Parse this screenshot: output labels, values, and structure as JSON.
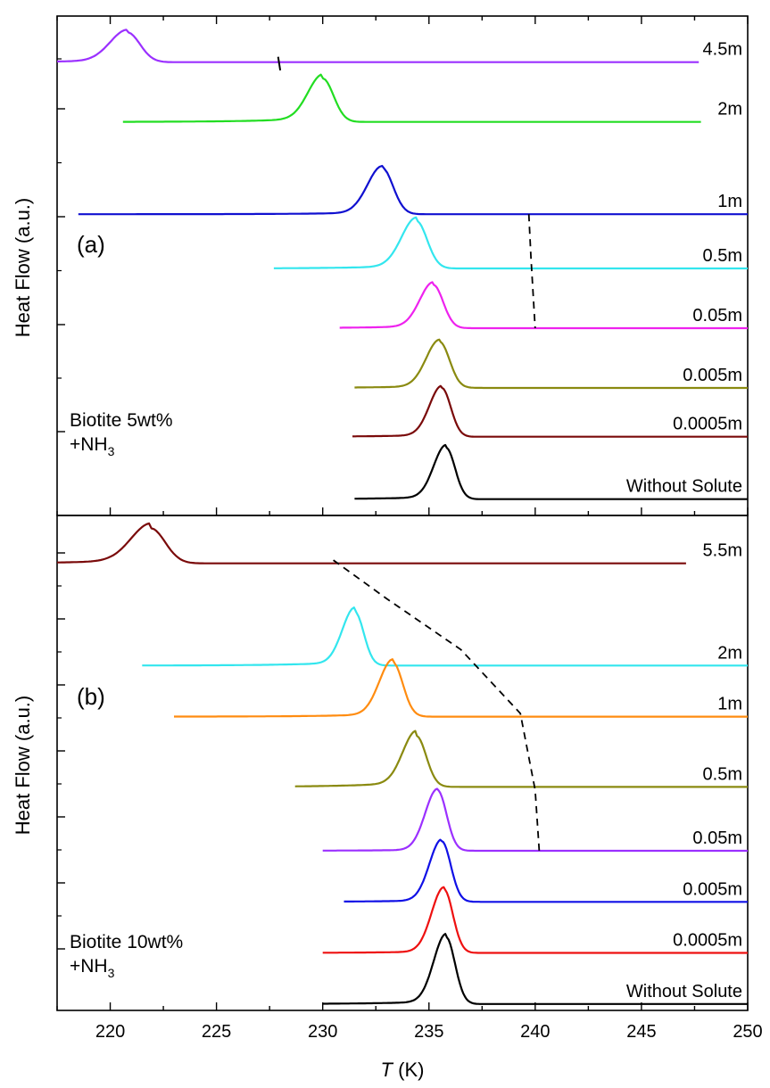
{
  "chart_data": {
    "type": "line",
    "xlabel": {
      "var": "T",
      "unit": " (K)"
    },
    "xlim": [
      217.5,
      250
    ],
    "xticks": [
      220,
      225,
      230,
      235,
      240,
      245,
      250
    ],
    "panels": [
      {
        "tag": "(a)",
        "ylabel": "Heat Flow (a.u.)",
        "sample": [
          "Biotite 5wt%",
          "+NH",
          "3"
        ],
        "series": [
          {
            "name": "4.5m",
            "color": "#9b30ff",
            "x_start": 217.5,
            "x_end": 247.7,
            "baseline": 8.35,
            "peak_x": 220.8,
            "peak_h": 0.55,
            "sigma": 0.7,
            "tail": 0.05
          },
          {
            "name": "2m",
            "color": "#22dd22",
            "x_start": 220.6,
            "x_end": 247.8,
            "baseline": 7.25,
            "peak_x": 230.0,
            "peak_h": 0.8,
            "sigma": 0.6,
            "tail": 0.08
          },
          {
            "name": "1m",
            "color": "#1010d0",
            "x_start": 218.5,
            "x_end": 250,
            "baseline": 5.55,
            "peak_x": 232.8,
            "peak_h": 0.85,
            "sigma": 0.6,
            "tail": 0.04
          },
          {
            "name": "0.5m",
            "color": "#33e6ee",
            "x_start": 227.7,
            "x_end": 250,
            "baseline": 4.55,
            "peak_x": 234.4,
            "peak_h": 0.88,
            "sigma": 0.6,
            "tail": 0.06
          },
          {
            "name": "0.05m",
            "color": "#ee22ee",
            "x_start": 230.8,
            "x_end": 250,
            "baseline": 3.45,
            "peak_x": 235.2,
            "peak_h": 0.8,
            "sigma": 0.55,
            "tail": 0.05
          },
          {
            "name": "0.005m",
            "color": "#8a8a10",
            "x_start": 231.5,
            "x_end": 250,
            "baseline": 2.35,
            "peak_x": 235.5,
            "peak_h": 0.85,
            "sigma": 0.55,
            "tail": 0.04
          },
          {
            "name": "0.0005m",
            "color": "#7a0a0a",
            "x_start": 231.4,
            "x_end": 250,
            "baseline": 1.45,
            "peak_x": 235.6,
            "peak_h": 0.9,
            "sigma": 0.5,
            "tail": 0.04
          },
          {
            "name": "Without Solute",
            "color": "#000000",
            "x_start": 231.5,
            "x_end": 250,
            "baseline": 0.3,
            "peak_x": 235.8,
            "peak_h": 0.95,
            "sigma": 0.5,
            "tail": 0.05
          }
        ],
        "guide": [
          [
            239.7,
            5.55
          ],
          [
            239.8,
            4.75
          ],
          [
            240.0,
            3.45
          ]
        ],
        "marker": [
          [
            227.9,
            8.45
          ],
          [
            228.0,
            8.2
          ]
        ]
      },
      {
        "tag": "(b)",
        "ylabel": "Heat Flow (a.u.)",
        "sample": [
          "Biotite 10wt%",
          "+NH",
          "3"
        ],
        "series": [
          {
            "name": "5.5m",
            "color": "#7a0a0a",
            "x_start": 217.5,
            "x_end": 247.1,
            "baseline": 6.95,
            "peak_x": 221.9,
            "peak_h": 0.55,
            "sigma": 0.8,
            "tail": 0.08
          },
          {
            "name": "2m",
            "color": "#33e6ee",
            "x_start": 221.5,
            "x_end": 250,
            "baseline": 5.35,
            "peak_x": 231.5,
            "peak_h": 0.85,
            "sigma": 0.5,
            "tail": 0.06
          },
          {
            "name": "1m",
            "color": "#ff8c10",
            "x_start": 223.0,
            "x_end": 250,
            "baseline": 4.55,
            "peak_x": 233.3,
            "peak_h": 0.85,
            "sigma": 0.55,
            "tail": 0.05
          },
          {
            "name": "0.5m",
            "color": "#8a8a10",
            "x_start": 228.7,
            "x_end": 250,
            "baseline": 3.45,
            "peak_x": 234.4,
            "peak_h": 0.8,
            "sigma": 0.55,
            "tail": 0.08
          },
          {
            "name": "0.05m",
            "color": "#9b30ff",
            "x_start": 230.0,
            "x_end": 250,
            "baseline": 2.45,
            "peak_x": 235.4,
            "peak_h": 0.95,
            "sigma": 0.5,
            "tail": 0.02
          },
          {
            "name": "0.005m",
            "color": "#1010e6",
            "x_start": 231.0,
            "x_end": 250,
            "baseline": 1.65,
            "peak_x": 235.6,
            "peak_h": 0.95,
            "sigma": 0.5,
            "tail": 0.03
          },
          {
            "name": "0.0005m",
            "color": "#ee1010",
            "x_start": 230.0,
            "x_end": 250,
            "baseline": 0.85,
            "peak_x": 235.7,
            "peak_h": 1.0,
            "sigma": 0.5,
            "tail": 0.03
          },
          {
            "name": "Without Solute",
            "color": "#000000",
            "x_start": 230.0,
            "x_end": 250,
            "baseline": 0.05,
            "peak_x": 235.8,
            "peak_h": 1.05,
            "sigma": 0.5,
            "tail": 0.05
          }
        ],
        "guide": [
          [
            230.5,
            7.0
          ],
          [
            233.0,
            6.4
          ],
          [
            236.5,
            5.6
          ],
          [
            239.3,
            4.6
          ],
          [
            240.0,
            3.4
          ],
          [
            240.2,
            2.4
          ]
        ]
      }
    ]
  }
}
